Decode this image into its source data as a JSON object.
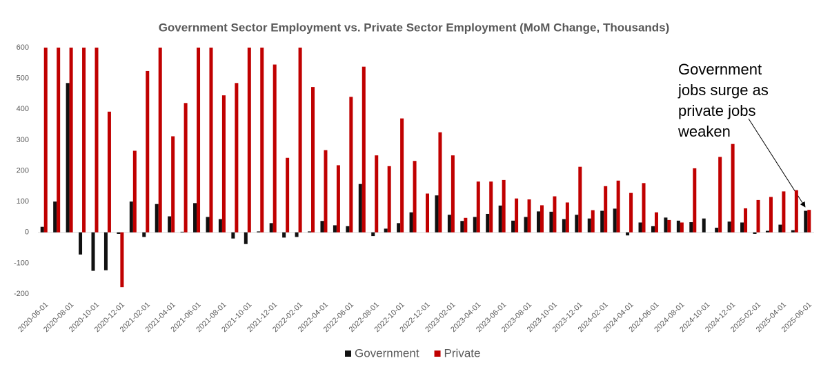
{
  "chart_data": {
    "type": "bar",
    "title": "Government Sector Employment vs. Private Sector Employment (MoM Change, Thousands)",
    "categories": [
      "2020-06-01",
      null,
      "2020-08-01",
      null,
      "2020-10-01",
      null,
      "2020-12-01",
      null,
      "2021-02-01",
      null,
      "2021-04-01",
      null,
      "2021-06-01",
      null,
      "2021-08-01",
      null,
      "2021-10-01",
      null,
      "2021-12-01",
      null,
      "2022-02-01",
      null,
      "2022-04-01",
      null,
      "2022-06-01",
      null,
      "2022-08-01",
      null,
      "2022-10-01",
      null,
      "2022-12-01",
      null,
      "2023-02-01",
      null,
      "2023-04-01",
      null,
      "2023-06-01",
      null,
      "2023-08-01",
      null,
      "2023-10-01",
      null,
      "2023-12-01",
      null,
      "2024-02-01",
      null,
      "2024-04-01",
      null,
      "2024-06-01",
      null,
      "2024-08-01",
      null,
      "2024-10-01",
      null,
      "2024-12-01",
      null,
      "2025-02-01",
      null,
      "2025-04-01",
      null,
      "2025-06-01"
    ],
    "series": [
      {
        "name": "Government",
        "color": "#111111",
        "values": [
          18,
          100,
          485,
          -72,
          -125,
          -123,
          -5,
          100,
          -15,
          92,
          52,
          2,
          95,
          50,
          43,
          -20,
          -38,
          3,
          30,
          -17,
          -15,
          3,
          37,
          23,
          20,
          157,
          -12,
          12,
          30,
          65,
          0,
          120,
          57,
          37,
          50,
          60,
          87,
          38,
          50,
          68,
          67,
          43,
          57,
          45,
          70,
          77,
          -10,
          32,
          20,
          48,
          38,
          33,
          45,
          15,
          35,
          32,
          -5,
          5,
          25,
          7,
          70
        ]
      },
      {
        "name": "Private",
        "color": "#c00000",
        "values": [
          600,
          600,
          600,
          600,
          600,
          392,
          -178,
          265,
          524,
          600,
          312,
          420,
          600,
          600,
          445,
          485,
          600,
          600,
          545,
          242,
          600,
          472,
          267,
          218,
          440,
          538,
          250,
          215,
          370,
          232,
          126,
          325,
          250,
          47,
          165,
          165,
          170,
          110,
          107,
          88,
          117,
          97,
          213,
          72,
          150,
          168,
          128,
          160,
          65,
          40,
          32,
          208,
          0,
          245,
          287,
          78,
          105,
          115,
          133,
          137,
          73
        ]
      }
    ],
    "ylim": [
      -200,
      600
    ],
    "yticks": [
      -200,
      -100,
      0,
      100,
      200,
      300,
      400,
      500,
      600
    ],
    "annotation": [
      "Government",
      "jobs surge as",
      "private jobs",
      "weaken"
    ],
    "legend": "bottom"
  }
}
